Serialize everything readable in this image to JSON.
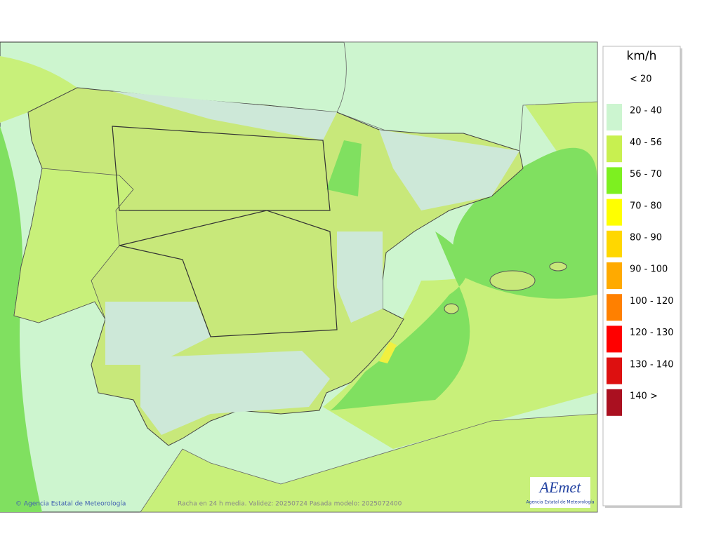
{
  "map": {
    "caption": "Racha en 24 h media. Validez: 20250724 Pasada modelo: 2025072400",
    "copyright": "© Agencia Estatal de Meteorología",
    "logo": {
      "name": "AEmet",
      "subtitle": "Agencia Estatal de Meteorología"
    }
  },
  "legend": {
    "title": "km/h",
    "items": [
      {
        "label": "< 20",
        "color": "#ffffff"
      },
      {
        "label": "20 - 40",
        "color": "#ccf5d0"
      },
      {
        "label": "40 - 56",
        "color": "#c8f050"
      },
      {
        "label": "56 - 70",
        "color": "#7df020"
      },
      {
        "label": "70 - 80",
        "color": "#ffff00"
      },
      {
        "label": "80 - 90",
        "color": "#ffd700"
      },
      {
        "label": "90 - 100",
        "color": "#ffaa00"
      },
      {
        "label": "100 - 120",
        "color": "#ff8000"
      },
      {
        "label": "120 - 130",
        "color": "#ff0000"
      },
      {
        "label": "130 - 140",
        "color": "#dd1010"
      },
      {
        "label": "140 >",
        "color": "#aa1020"
      }
    ]
  }
}
